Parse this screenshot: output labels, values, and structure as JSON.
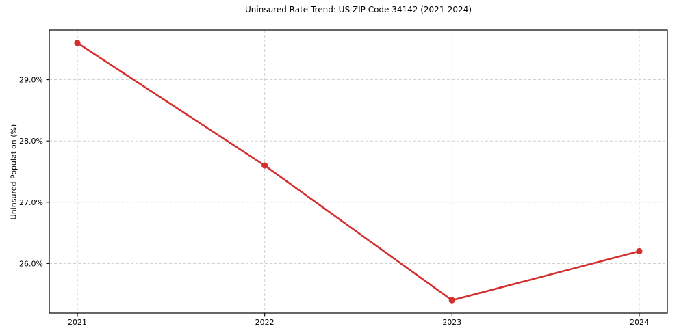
{
  "chart_data": {
    "type": "line",
    "title": "Uninsured Rate Trend: US ZIP Code 34142 (2021-2024)",
    "xlabel": "",
    "ylabel": "Uninsured Population (%)",
    "x": [
      2021,
      2022,
      2023,
      2024
    ],
    "values": [
      29.6,
      27.6,
      25.4,
      26.2
    ],
    "x_tick_labels": [
      "2021",
      "2022",
      "2023",
      "2024"
    ],
    "y_ticks": [
      26,
      27,
      28,
      29
    ],
    "y_tick_labels": [
      "26.0%",
      "27.0%",
      "28.0%",
      "29.0%"
    ],
    "xlim": [
      2020.85,
      2024.15
    ],
    "ylim": [
      25.19,
      29.81
    ],
    "grid": true,
    "legend_position": "none",
    "line_color": "#d32f2f",
    "grid_color": "#cccccc",
    "spine_color": "#000000",
    "marker": "circle",
    "background_color": "#ffffff"
  }
}
